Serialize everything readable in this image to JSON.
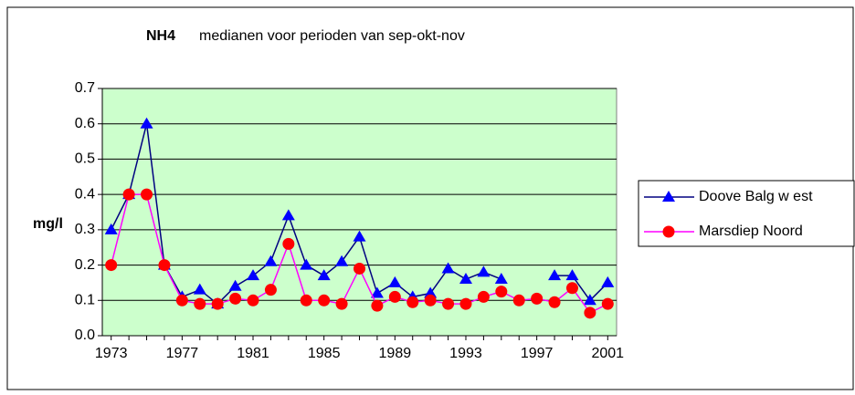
{
  "chart_data": {
    "type": "line",
    "title": "NH4",
    "subtitle": "medianen voor perioden van sep-okt-nov",
    "y_label": "mg/l",
    "x": [
      1973,
      1974,
      1975,
      1976,
      1977,
      1978,
      1979,
      1980,
      1981,
      1982,
      1983,
      1984,
      1985,
      1986,
      1987,
      1988,
      1989,
      1990,
      1991,
      1992,
      1993,
      1994,
      1995,
      1996,
      1997,
      1998,
      1999,
      2000,
      2001
    ],
    "series": [
      {
        "name": "Doove Balg w est",
        "color": "#000080",
        "marker": "triangle",
        "marker_color": "#0000ff",
        "values": [
          0.3,
          0.4,
          0.6,
          0.2,
          0.11,
          0.13,
          0.09,
          0.14,
          0.17,
          0.21,
          0.34,
          0.2,
          0.17,
          0.21,
          0.28,
          0.12,
          0.15,
          0.11,
          0.12,
          0.19,
          0.16,
          0.18,
          0.16,
          null,
          null,
          0.17,
          0.17,
          0.1,
          0.15
        ]
      },
      {
        "name": "Marsdiep Noord",
        "color": "#ff00ff",
        "marker": "circle",
        "marker_color": "#ff0000",
        "values": [
          0.2,
          0.4,
          0.4,
          0.2,
          0.1,
          0.09,
          0.09,
          0.105,
          0.1,
          0.13,
          0.26,
          0.1,
          0.1,
          0.09,
          0.19,
          0.085,
          0.11,
          0.095,
          0.1,
          0.09,
          0.09,
          0.11,
          0.125,
          0.1,
          0.105,
          0.095,
          0.135,
          0.065,
          0.09
        ]
      }
    ],
    "xlim": [
      1972.5,
      2001.5
    ],
    "xticks": [
      1973,
      1977,
      1981,
      1985,
      1989,
      1993,
      1997,
      2001
    ],
    "ylim": [
      0,
      0.7
    ],
    "yticks": [
      {
        "value": 0,
        "label": "0.0"
      },
      0.1,
      0.2,
      0.3,
      0.4,
      0.5,
      0.6,
      0.7
    ],
    "grid": true,
    "plot_background": "#ccffcc",
    "legend": "right"
  }
}
